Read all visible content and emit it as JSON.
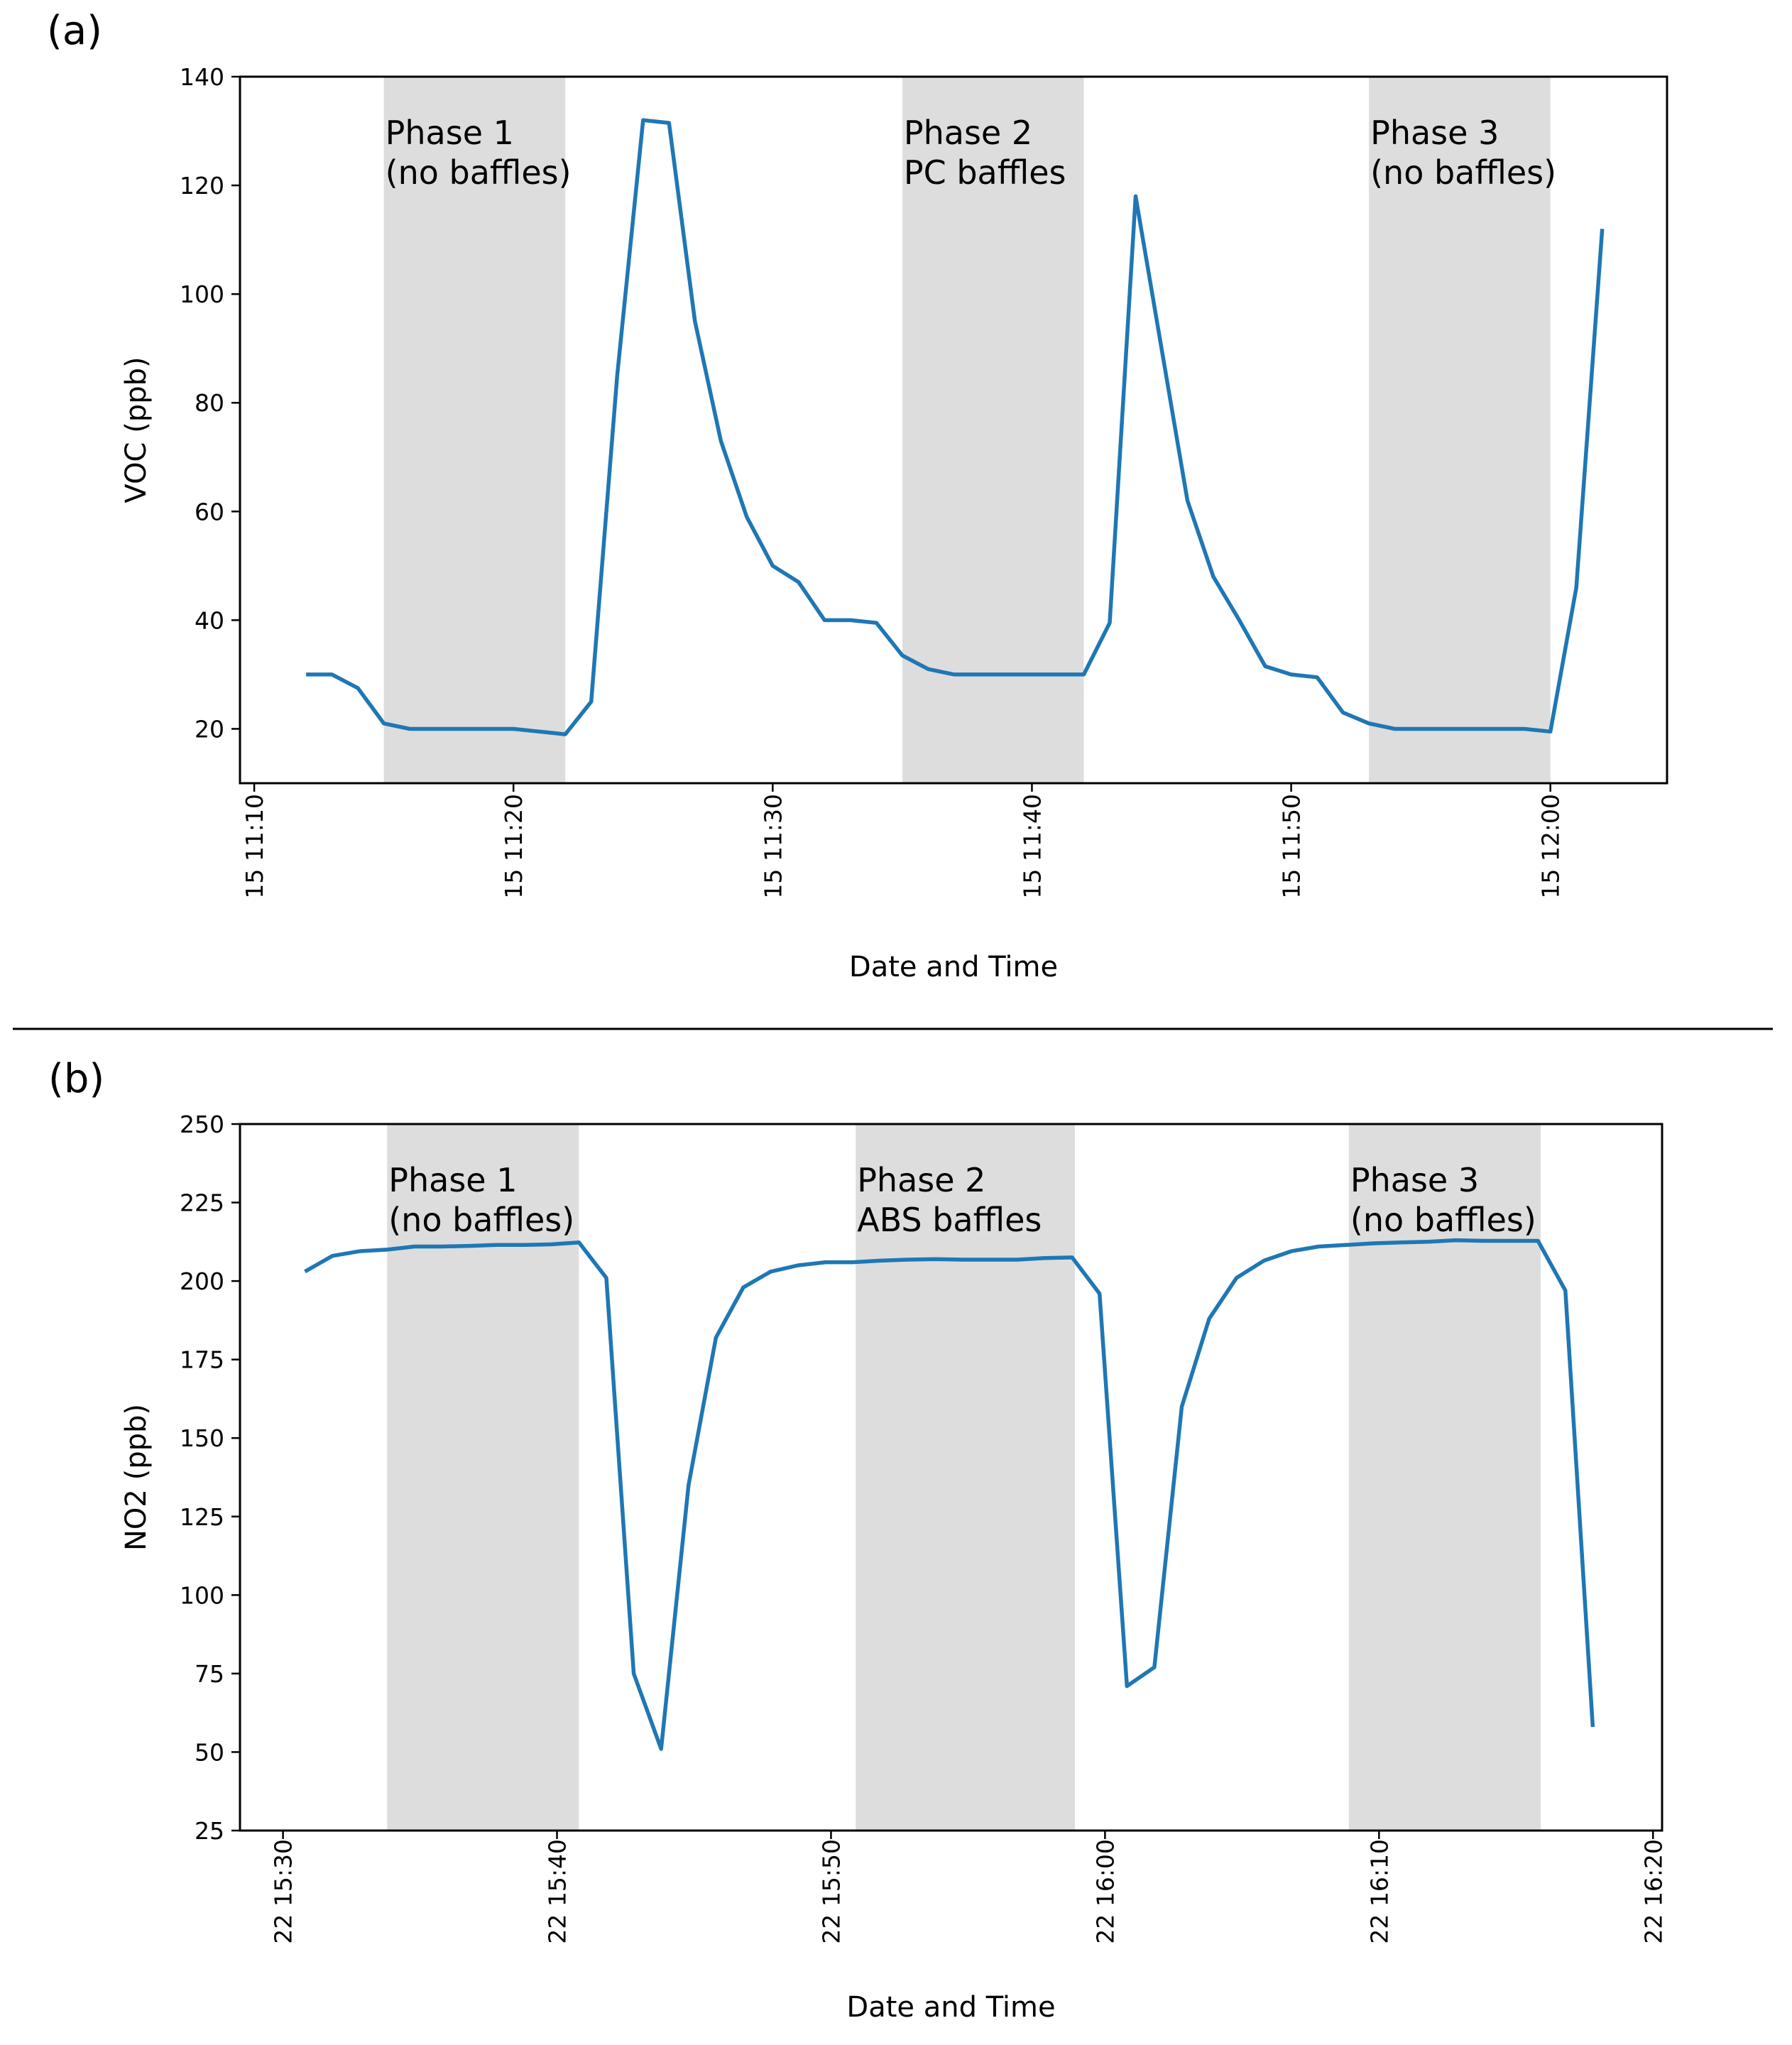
{
  "chart_data": [
    {
      "type": "line",
      "panel_label": "(a)",
      "title": "",
      "xlabel": "Date and Time",
      "ylabel": "VOC (ppb)",
      "ylim": [
        10,
        140
      ],
      "yticks": [
        20,
        40,
        60,
        80,
        100,
        120,
        140
      ],
      "xlim_minutes_after_11_00": [
        9.45,
        64.5
      ],
      "xticks": [
        {
          "minute": 10,
          "label": "15 11:10"
        },
        {
          "minute": 20,
          "label": "15 11:20"
        },
        {
          "minute": 30,
          "label": "15 11:30"
        },
        {
          "minute": 40,
          "label": "15 11:40"
        },
        {
          "minute": 50,
          "label": "15 11:50"
        },
        {
          "minute": 60,
          "label": "15 12:00"
        }
      ],
      "grid": false,
      "line_color": "#1f77b4",
      "shade_color": "#dddddd",
      "phases": [
        {
          "start": 15,
          "end": 22,
          "line1": "Phase 1",
          "line2": "(no baffles)"
        },
        {
          "start": 35,
          "end": 42,
          "line1": "Phase 2",
          "line2": "PC baffles"
        },
        {
          "start": 53,
          "end": 60,
          "line1": "Phase 3",
          "line2": "(no baffles)"
        }
      ],
      "series": [
        {
          "name": "VOC",
          "x_start_minute": 12,
          "x_step_minute": 1,
          "values": [
            30,
            30,
            27.5,
            21,
            20,
            20,
            20,
            20,
            20,
            19.5,
            19,
            25,
            85,
            132,
            131.5,
            95,
            73,
            59,
            50,
            47,
            40,
            40,
            39.5,
            33.5,
            31,
            30,
            30,
            30,
            30,
            30,
            30,
            39.5,
            118,
            90,
            62,
            48,
            40,
            31.5,
            30,
            29.5,
            23,
            21,
            20,
            20,
            20,
            20,
            20,
            20,
            19.5,
            46,
            112
          ]
        }
      ]
    },
    {
      "type": "line",
      "panel_label": "(b)",
      "title": "",
      "xlabel": "Date and Time",
      "ylabel": "NO2 (ppb)",
      "ylim": [
        25,
        250
      ],
      "yticks": [
        25,
        50,
        75,
        100,
        125,
        150,
        175,
        200,
        225,
        250
      ],
      "xlim_minutes_after_15_00": [
        28.43,
        80.33
      ],
      "xticks": [
        {
          "minute": 30,
          "label": "22 15:30"
        },
        {
          "minute": 40,
          "label": "22 15:40"
        },
        {
          "minute": 50,
          "label": "22 15:50"
        },
        {
          "minute": 60,
          "label": "22 16:00"
        },
        {
          "minute": 70,
          "label": "22 16:10"
        },
        {
          "minute": 80,
          "label": "22 16:20"
        }
      ],
      "grid": false,
      "line_color": "#1f77b4",
      "shade_color": "#dddddd",
      "phases": [
        {
          "start": 33.8,
          "end": 40.8,
          "line1": "Phase 1",
          "line2": "(no baffles)"
        },
        {
          "start": 50.9,
          "end": 58.9,
          "line1": "Phase 2",
          "line2": "ABS baffles"
        },
        {
          "start": 68.9,
          "end": 75.9,
          "line1": "Phase 3",
          "line2": "(no baffles)"
        }
      ],
      "series": [
        {
          "name": "NO2",
          "x_start_minute": 30.8,
          "x_step_minute": 1,
          "values": [
            203,
            208,
            209.5,
            210,
            211,
            211,
            211.2,
            211.5,
            211.5,
            211.7,
            212.3,
            201,
            75,
            51,
            135,
            182,
            198,
            203,
            205,
            206,
            206,
            206.5,
            206.8,
            207,
            206.8,
            206.8,
            206.8,
            207.3,
            207.5,
            196,
            71,
            77,
            160,
            188,
            201,
            206.5,
            209.5,
            211,
            211.5,
            212,
            212.3,
            212.5,
            213,
            212.8,
            212.8,
            212.8,
            197,
            58
          ]
        }
      ]
    }
  ]
}
